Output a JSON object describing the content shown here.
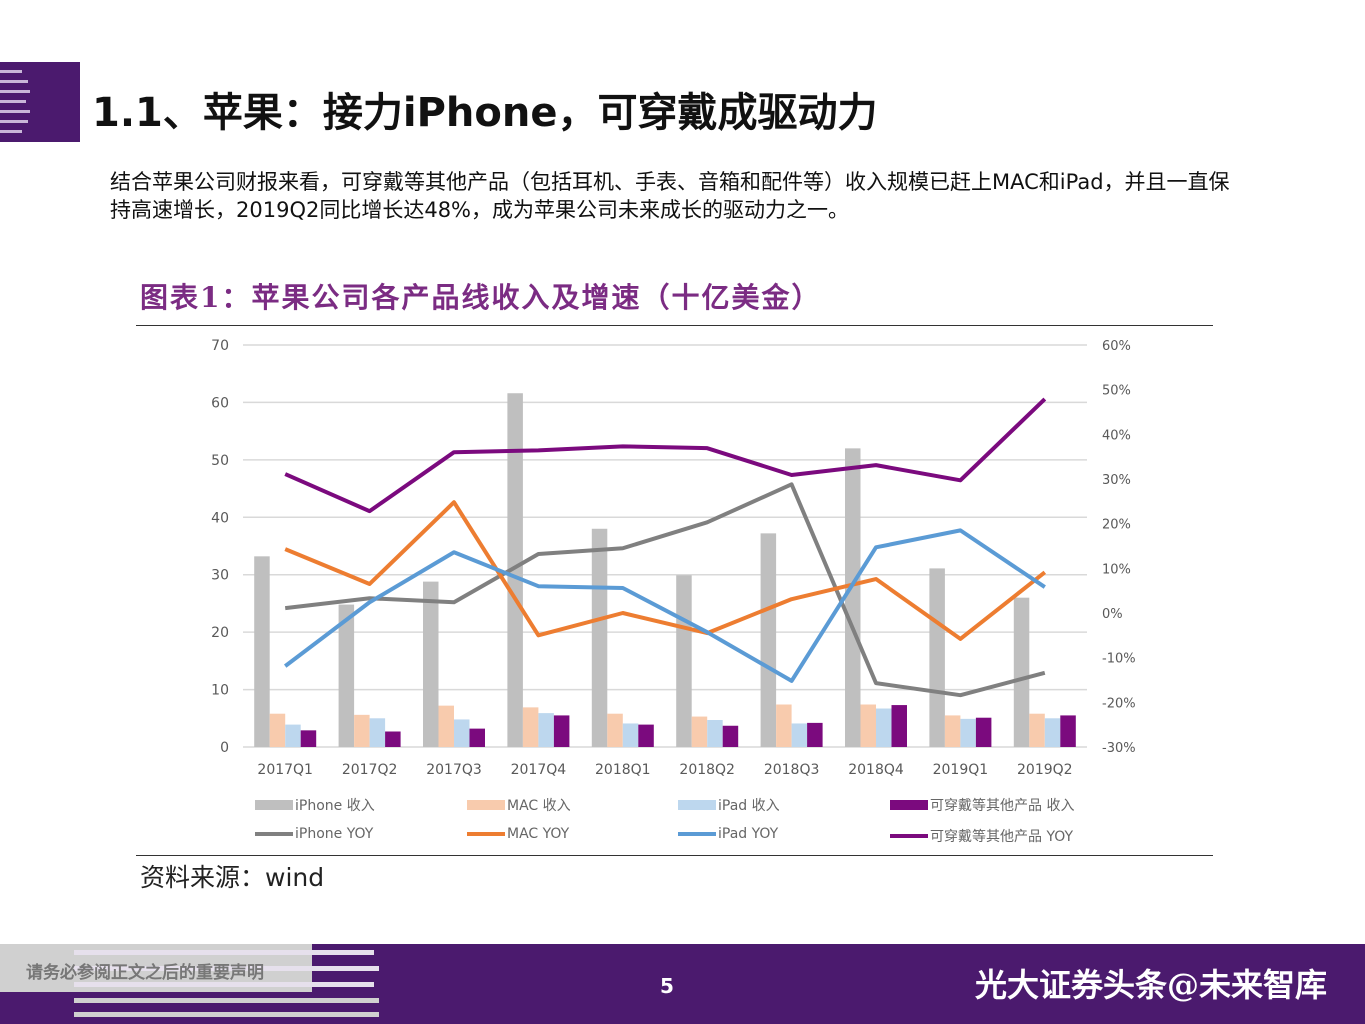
{
  "header": {
    "title": "1.1、苹果：接力iPhone，可穿戴成驱动力"
  },
  "body_text": "结合苹果公司财报来看，可穿戴等其他产品（包括耳机、手表、音箱和配件等）收入规模已赶上MAC和iPad，并且一直保持高速增长，2019Q2同比增长达48%，成为苹果公司未来成长的驱动力之一。",
  "chart_title": "图表1：苹果公司各产品线收入及增速（十亿美金）",
  "source": {
    "label": "资料来源：",
    "value": "wind"
  },
  "footer": {
    "note": "请务必参阅正文之后的重要声明",
    "page": "5",
    "brand": "光大证券",
    "watermark": "头条@未来智库"
  },
  "colors": {
    "brand_purple": "#4b1a6e",
    "iphone_bar": "#bfbfbf",
    "mac_bar": "#f8cbad",
    "ipad_bar": "#bdd7ee",
    "wear_bar": "#7b0a7e",
    "iphone_yoy": "#808080",
    "mac_yoy": "#ed7d31",
    "ipad_yoy": "#5b9bd5",
    "wear_yoy": "#7b0a7e"
  },
  "chart_data": {
    "type": "bar+line",
    "categories": [
      "2017Q1",
      "2017Q2",
      "2017Q3",
      "2017Q4",
      "2018Q1",
      "2018Q2",
      "2018Q3",
      "2018Q4",
      "2019Q1",
      "2019Q2"
    ],
    "y_left": {
      "range": [
        0,
        70
      ],
      "ticks": [
        "0",
        "10",
        "20",
        "30",
        "40",
        "50",
        "60",
        "70"
      ]
    },
    "y_right": {
      "range": [
        -30,
        60
      ],
      "ticks": [
        "-30%",
        "-20%",
        "-10%",
        "0%",
        "10%",
        "20%",
        "30%",
        "40%",
        "50%",
        "60%"
      ]
    },
    "grid": true,
    "legend_position": "bottom",
    "bars": [
      {
        "name": "iPhone 收入",
        "values": [
          33.2,
          24.8,
          28.8,
          61.6,
          38.0,
          29.9,
          37.2,
          52.0,
          31.1,
          26.0
        ]
      },
      {
        "name": "MAC 收入",
        "values": [
          5.8,
          5.6,
          7.2,
          6.9,
          5.8,
          5.3,
          7.4,
          7.4,
          5.5,
          5.8
        ]
      },
      {
        "name": "iPad 收入",
        "values": [
          3.9,
          5.0,
          4.8,
          5.9,
          4.1,
          4.7,
          4.1,
          6.7,
          4.9,
          5.0
        ]
      },
      {
        "name": "可穿戴等其他产品 收入",
        "values": [
          2.9,
          2.7,
          3.2,
          5.5,
          3.9,
          3.7,
          4.2,
          7.3,
          5.1,
          5.5
        ]
      }
    ],
    "lines": [
      {
        "name": "iPhone YOY",
        "values": [
          1.1,
          3.3,
          2.4,
          13.2,
          14.5,
          20.3,
          28.8,
          -15.7,
          -18.4,
          -13.4
        ]
      },
      {
        "name": "MAC YOY",
        "values": [
          14.3,
          6.5,
          24.8,
          -5.0,
          0.0,
          -4.5,
          3.1,
          7.6,
          -5.8,
          9.1
        ]
      },
      {
        "name": "iPad YOY",
        "values": [
          -11.9,
          2.4,
          13.6,
          6.0,
          5.6,
          -4.3,
          -15.2,
          14.7,
          18.5,
          5.8
        ]
      },
      {
        "name": "可穿戴等其他产品 YOY",
        "values": [
          31.1,
          22.8,
          36.0,
          36.4,
          37.3,
          36.9,
          30.9,
          33.1,
          29.7,
          47.9
        ]
      }
    ]
  }
}
